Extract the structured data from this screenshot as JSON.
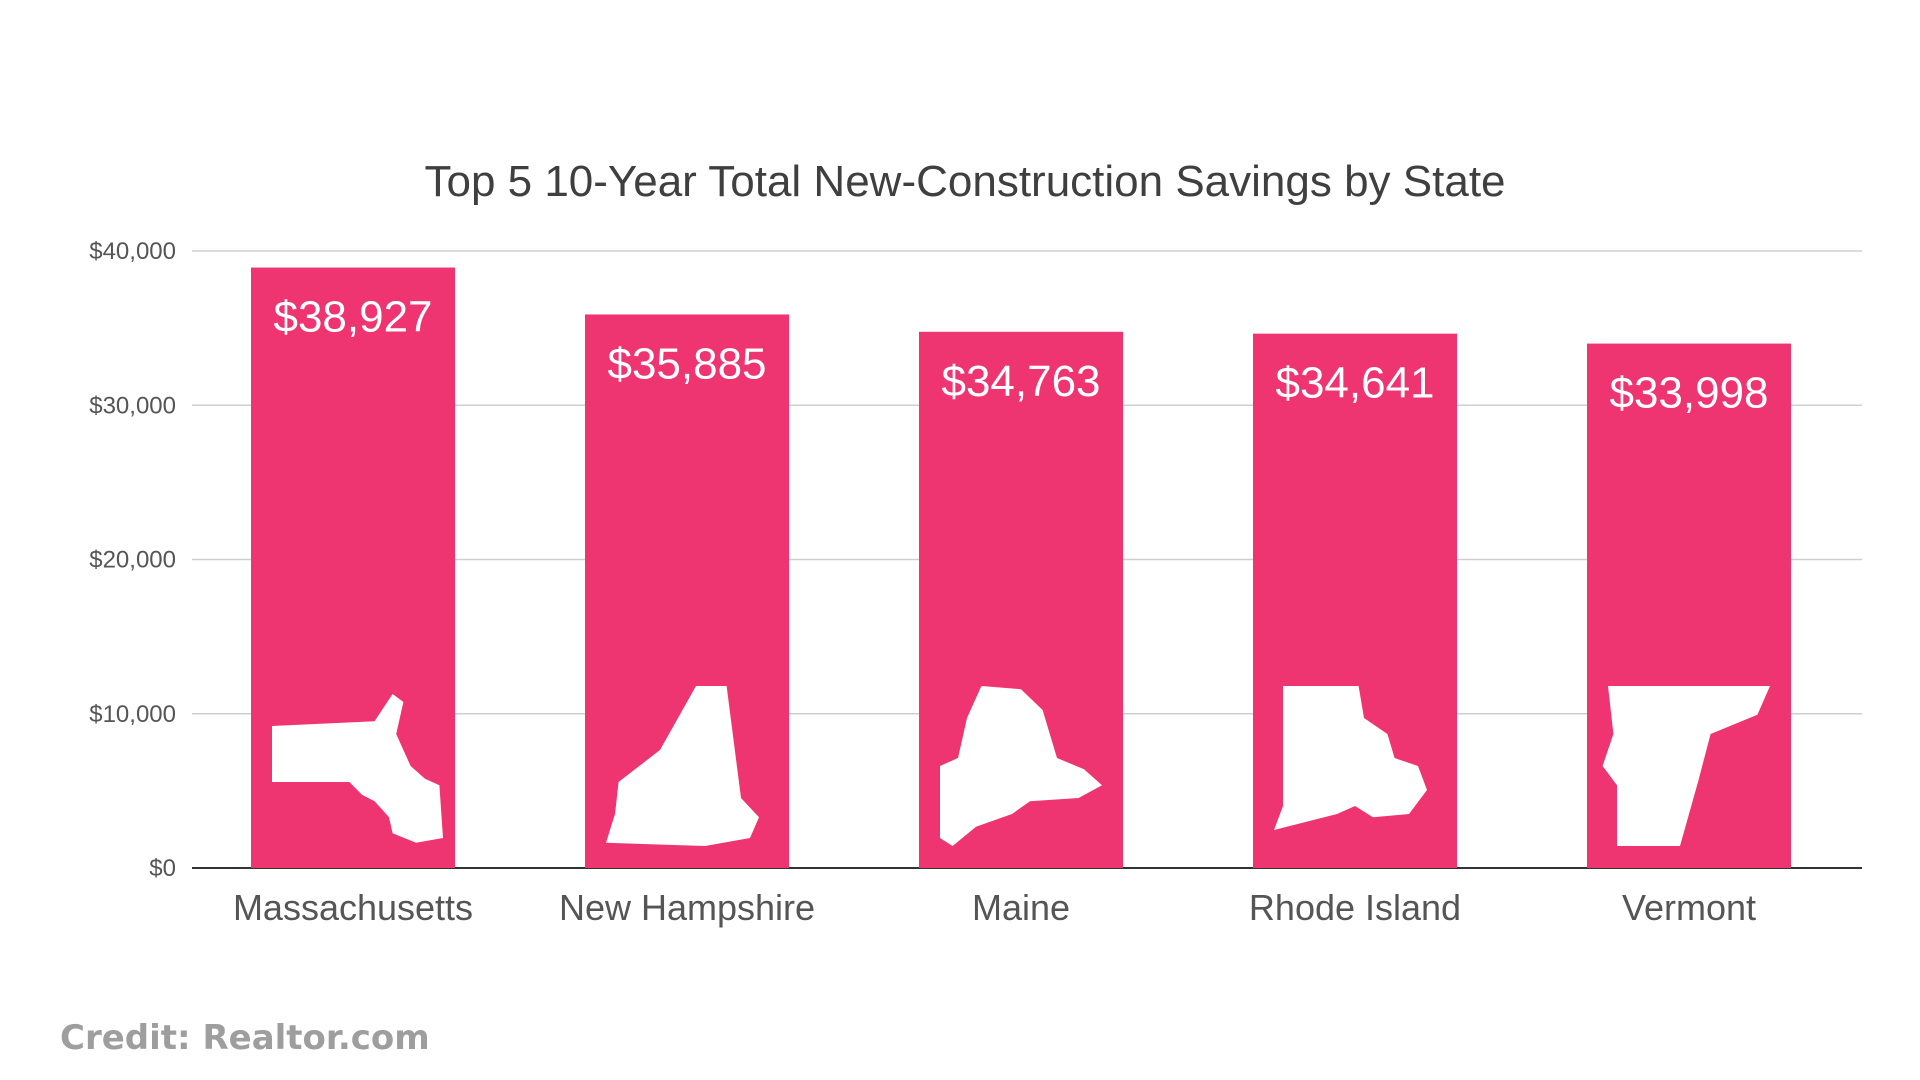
{
  "chart_data": {
    "type": "bar",
    "title": "Top 5 10-Year Total New-Construction Savings by State",
    "categories": [
      "Massachusetts",
      "New Hampshire",
      "Maine",
      "Rhode Island",
      "Vermont"
    ],
    "values": [
      38927,
      35885,
      34763,
      34641,
      33998
    ],
    "value_labels": [
      "$38,927",
      "$35,885",
      "$34,763",
      "$34,641",
      "$33,998"
    ],
    "y_ticks": [
      0,
      10000,
      20000,
      30000,
      40000
    ],
    "y_tick_labels": [
      "$0",
      "$10,000",
      "$20,000",
      "$30,000",
      "$40,000"
    ],
    "ylim": [
      0,
      40000
    ],
    "grid": true,
    "legend": "none",
    "bar_color": "#ee3571",
    "bar_icons": [
      "massachusetts-map-icon",
      "new-hampshire-map-icon",
      "maine-map-icon",
      "rhode-island-map-icon",
      "vermont-map-icon"
    ]
  },
  "credit": "Credit: Realtor.com"
}
